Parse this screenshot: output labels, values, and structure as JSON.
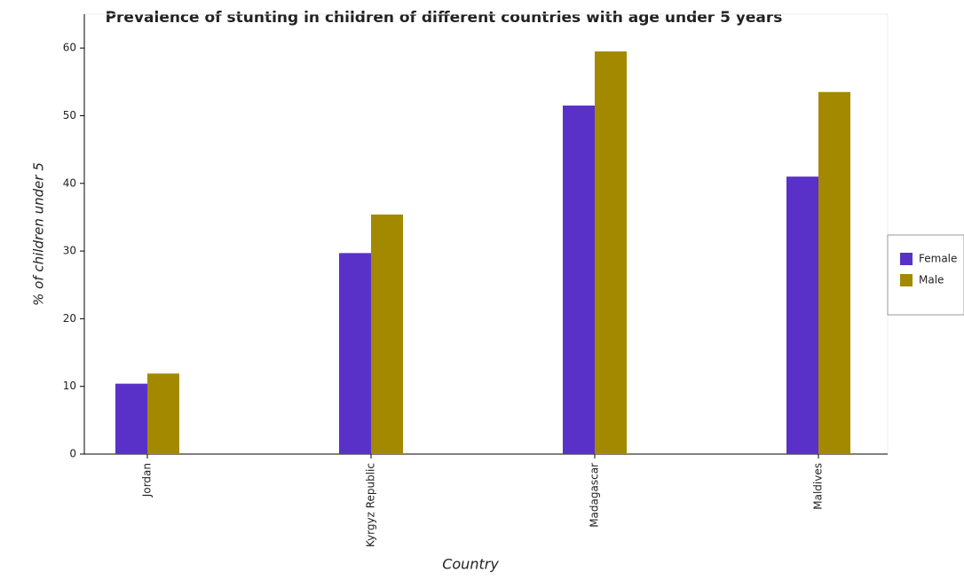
{
  "chart_data": {
    "type": "bar",
    "title": "Prevalence of stunting in children of different countries with age under 5 years",
    "x_label": "Country",
    "y_label": "% of children under 5",
    "categories": [
      "Jordan",
      "Kyrgyz Republic",
      "Madagascar",
      "Maldives"
    ],
    "series": [
      {
        "name": "Female",
        "color": "#5a31c8",
        "values": [
          10.4,
          29.7,
          51.5,
          41.0
        ]
      },
      {
        "name": "Male",
        "color": "#a38900",
        "values": [
          11.9,
          35.4,
          59.5,
          53.5
        ]
      }
    ],
    "ylim": [
      0,
      65
    ],
    "yticks": [
      0,
      10,
      20,
      30,
      40,
      50,
      60
    ],
    "grid": false,
    "legend": "right"
  }
}
